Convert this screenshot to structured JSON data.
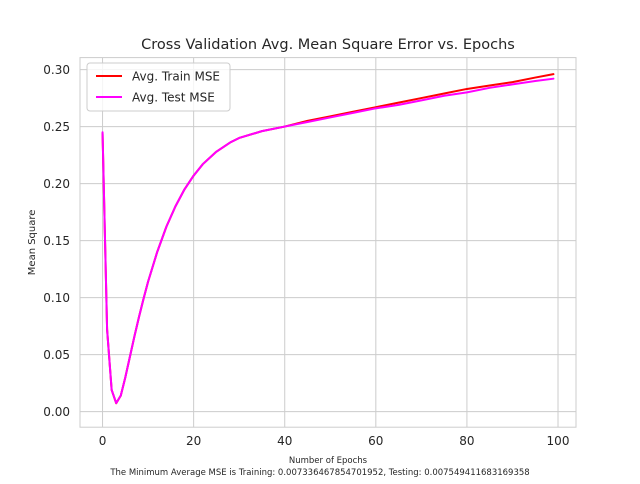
{
  "chart_data": {
    "type": "line",
    "title": "Cross Validation Avg. Mean Square Error vs. Epochs",
    "xlabel": "Number of Epochs",
    "ylabel": "Mean Square",
    "caption": "The Minimum Average MSE is Training: 0.007336467854701952, Testing: 0.007549411683169358",
    "xlim": [
      -4.95,
      103.95
    ],
    "ylim": [
      -0.0137,
      0.3105
    ],
    "x_ticks": [
      0,
      20,
      40,
      60,
      80,
      100
    ],
    "x_tick_labels": [
      "0",
      "20",
      "40",
      "60",
      "80",
      "100"
    ],
    "y_ticks": [
      0.0,
      0.05,
      0.1,
      0.15,
      0.2,
      0.25,
      0.3
    ],
    "y_tick_labels": [
      "0.00",
      "0.05",
      "0.10",
      "0.15",
      "0.20",
      "0.25",
      "0.30"
    ],
    "grid": true,
    "legend_position": "top-left",
    "background": "#ffffff",
    "grid_color": "#cccccc",
    "series": [
      {
        "name": "Avg. Train MSE",
        "color": "#ff0000",
        "x": [
          0,
          1,
          2,
          3,
          4,
          5,
          6,
          7,
          8,
          9,
          10,
          12,
          14,
          16,
          18,
          20,
          22,
          25,
          28,
          30,
          35,
          40,
          45,
          50,
          55,
          60,
          65,
          70,
          75,
          80,
          85,
          90,
          95,
          99
        ],
        "y": [
          0.244,
          0.072,
          0.019,
          0.0073,
          0.014,
          0.03,
          0.048,
          0.066,
          0.083,
          0.099,
          0.114,
          0.14,
          0.162,
          0.18,
          0.195,
          0.207,
          0.217,
          0.228,
          0.236,
          0.24,
          0.246,
          0.25,
          0.255,
          0.259,
          0.263,
          0.267,
          0.271,
          0.275,
          0.279,
          0.283,
          0.286,
          0.289,
          0.293,
          0.296
        ]
      },
      {
        "name": "Avg. Test MSE",
        "color": "#ff00ff",
        "x": [
          0,
          1,
          2,
          3,
          4,
          5,
          6,
          7,
          8,
          9,
          10,
          12,
          14,
          16,
          18,
          20,
          22,
          25,
          28,
          30,
          35,
          40,
          45,
          50,
          55,
          60,
          65,
          70,
          75,
          80,
          85,
          90,
          95,
          99
        ],
        "y": [
          0.245,
          0.072,
          0.019,
          0.0075,
          0.014,
          0.03,
          0.048,
          0.066,
          0.083,
          0.099,
          0.114,
          0.14,
          0.162,
          0.18,
          0.195,
          0.207,
          0.217,
          0.228,
          0.236,
          0.24,
          0.246,
          0.25,
          0.254,
          0.258,
          0.262,
          0.266,
          0.269,
          0.273,
          0.277,
          0.28,
          0.284,
          0.287,
          0.29,
          0.292
        ]
      }
    ]
  }
}
